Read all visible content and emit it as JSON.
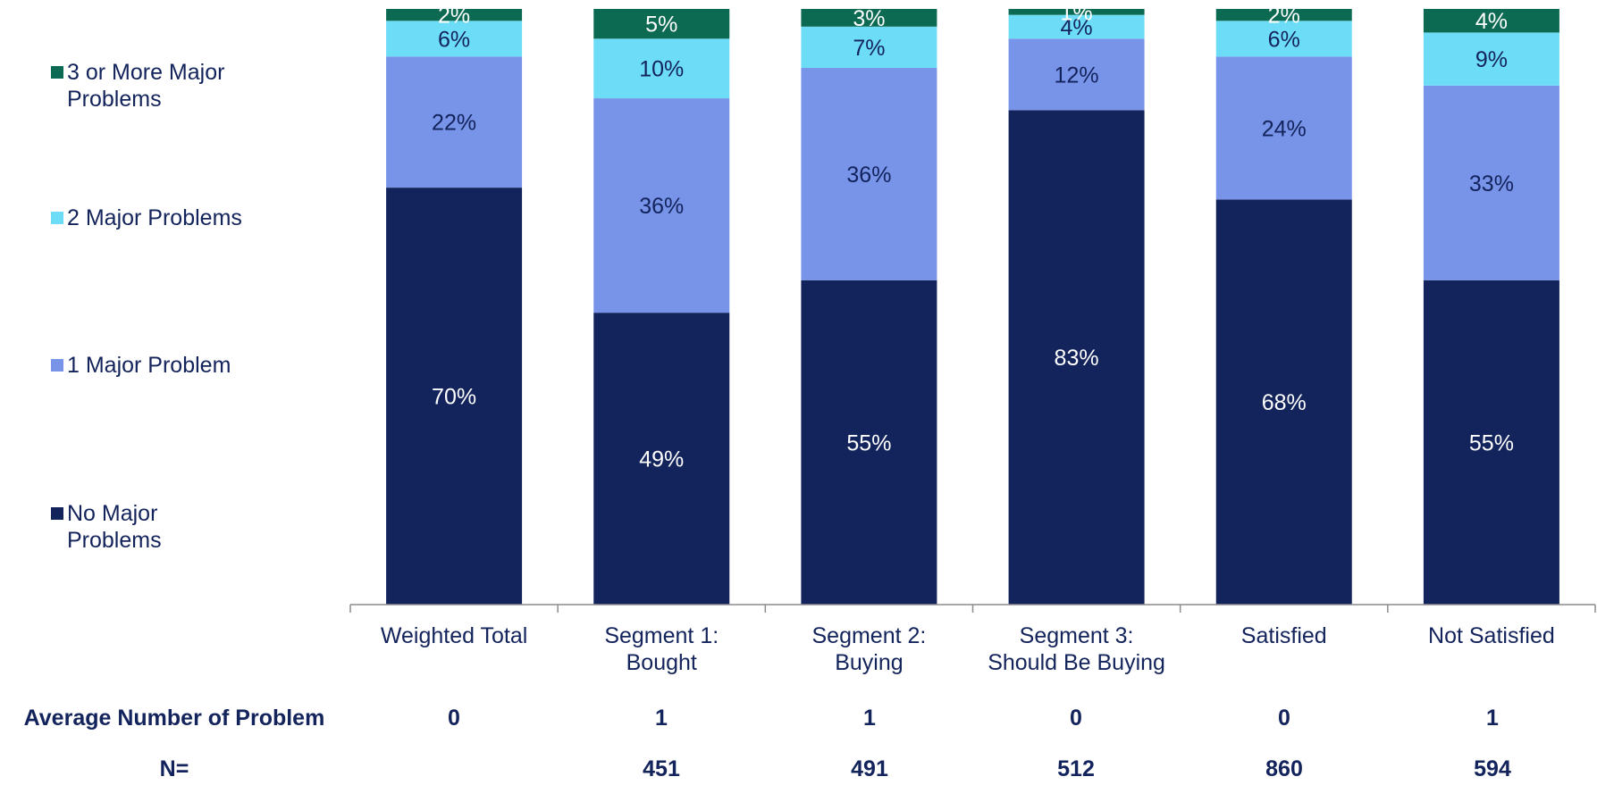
{
  "chart_data": {
    "type": "bar",
    "stacked": true,
    "normalized_percent": true,
    "categories": [
      [
        "Weighted Total"
      ],
      [
        "Segment 1:",
        "Bought"
      ],
      [
        "Segment 2:",
        "Buying"
      ],
      [
        "Segment 3:",
        "Should Be Buying"
      ],
      [
        "Satisfied"
      ],
      [
        "Not Satisfied"
      ]
    ],
    "series": [
      {
        "name": "No Major Problems",
        "color": "#13235b",
        "label_color": "#ffffff",
        "values": [
          70,
          49,
          55,
          83,
          68,
          55
        ],
        "labels": [
          "70%",
          "49%",
          "55%",
          "83%",
          "68%",
          "55%"
        ]
      },
      {
        "name": "1 Major Problem",
        "color": "#7794e8",
        "label_color": "#13235b",
        "values": [
          22,
          36,
          36,
          12,
          24,
          33
        ],
        "labels": [
          "22%",
          "36%",
          "36%",
          "12%",
          "24%",
          "33%"
        ]
      },
      {
        "name": "2 Major Problems",
        "color": "#6ddcf6",
        "label_color": "#13235b",
        "values": [
          6,
          10,
          7,
          4,
          6,
          9
        ],
        "labels": [
          "6%",
          "10%",
          "7%",
          "4%",
          "6%",
          "9%"
        ]
      },
      {
        "name": "3 or More Major Problems",
        "color": "#0c6a52",
        "label_color": "#ffffff",
        "values": [
          2,
          5,
          3,
          1,
          2,
          4
        ],
        "labels": [
          "2%",
          "5%",
          "3%",
          "1%",
          "2%",
          "4%"
        ]
      }
    ],
    "legend_position": "left",
    "grid": false
  },
  "legend": {
    "items": [
      {
        "lines": [
          "3 or More Major",
          "Problems"
        ],
        "color": "#0c6a52"
      },
      {
        "lines": [
          "2 Major Problems"
        ],
        "color": "#6ddcf6"
      },
      {
        "lines": [
          "1 Major Problem"
        ],
        "color": "#7794e8"
      },
      {
        "lines": [
          "No Major",
          "Problems"
        ],
        "color": "#13235b"
      }
    ]
  },
  "table": {
    "avg_label": "Average Number of Problem",
    "avg_values": [
      "0",
      "1",
      "1",
      "0",
      "0",
      "1"
    ],
    "n_label": "N=",
    "n_values": [
      "",
      "451",
      "491",
      "512",
      "860",
      "594"
    ]
  }
}
